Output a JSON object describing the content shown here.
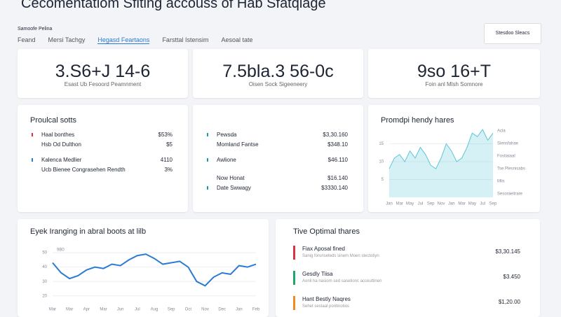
{
  "header": {
    "title": "Cecomentatiom Sfiting accouss of Hab Sfatqlage",
    "subtitle": "Samoofe Pelina",
    "button": "Stesdoo Sleacs"
  },
  "tabs": [
    "Feand",
    "Mersi Tachgy",
    "Hegasd Feartaons",
    "Farsttal Istensim",
    "Aesoal tate"
  ],
  "kpis": [
    {
      "value": "3.S6+J 14-6",
      "label": "Esast Ub Fesoord Peamnment"
    },
    {
      "value": "7.5bla.3 56-0c",
      "label": "Oisen Sock Sigeeneery"
    },
    {
      "value": "9so 16+T",
      "label": "Foin anl Mlsh Somnore"
    }
  ],
  "lists": [
    {
      "title": "Proulcal sotts",
      "items": [
        {
          "name": "Haal bonthes",
          "value": "$53%"
        },
        {
          "name": "Hsb Od Dulthon",
          "value": "$5"
        },
        {
          "name": "Kalenca Medlier",
          "value": "4110"
        },
        {
          "name": "Ucb Bienee Congrasehen Rendth",
          "value": "3%"
        }
      ]
    },
    {
      "items": [
        {
          "name": "Pewsda",
          "value": "$3,30.160"
        },
        {
          "name": "Momland Fantse",
          "value": "$348.10"
        },
        {
          "name": "Awlione",
          "value": "$46.110"
        },
        {
          "name": "Now Honat",
          "value": "$16.140"
        },
        {
          "name": "Date Swwagy",
          "value": "$3330.140"
        }
      ]
    }
  ],
  "chart_data": [
    {
      "type": "area",
      "title": "Promdpi hendy hares",
      "color": "#5cc6d6",
      "categories": [
        "Jan",
        "Feb",
        "Mar",
        "Apr",
        "May",
        "Jun",
        "Jul",
        "Aug",
        "Sep",
        "Oct",
        "Nov",
        "Dec",
        "Jan",
        "Feb",
        "Mar",
        "Apr",
        "May",
        "Jun",
        "Jul",
        "Aug",
        "Sep"
      ],
      "values": [
        8,
        11,
        12,
        10,
        13,
        11,
        14,
        12,
        9,
        8,
        11,
        15,
        13,
        10,
        11,
        14,
        18,
        17,
        19,
        16,
        18
      ],
      "ylim": [
        0,
        20
      ],
      "yticks": [
        5,
        10,
        15
      ],
      "grid": true,
      "annotations": [
        "Acla",
        "Siensfahae",
        "Fostiaiaal",
        "Tse Plesnisabs",
        "Mlis",
        "Sesoraeitrare"
      ]
    },
    {
      "type": "line",
      "title": "Eyek Iranging in abral boots at lilb",
      "color": "#2a7bd4",
      "categories": [
        "Mar",
        "",
        "Mar",
        "",
        "Apr",
        "",
        "Mar",
        "",
        "Jun",
        "",
        "Jul",
        "",
        "Aug",
        "",
        "Sep",
        "",
        "Oct",
        "",
        "Nov",
        "",
        "Dec",
        "",
        "Jan",
        "",
        "Feb"
      ],
      "values": [
        43,
        36,
        32,
        34,
        38,
        40,
        39,
        42,
        41,
        45,
        48,
        49,
        46,
        42,
        43,
        44,
        40,
        30,
        27,
        33,
        36,
        35,
        41,
        40,
        42
      ],
      "ylim": [
        15,
        52
      ],
      "yticks": [
        20,
        30,
        40,
        50
      ],
      "grid": true,
      "annotation": "9B0"
    }
  ],
  "options": {
    "title": "Tive Optimal thares",
    "items": [
      {
        "name": "Fiax Aposal fined",
        "sub": "Sanig forunseteds sinem Moen stectotiyn",
        "value": "$3,30.145",
        "color": "#d9334a"
      },
      {
        "name": "Gesdly Tiisa",
        "sub": "Aonil ha nasiom sed sasetionc acceuttinen",
        "value": "$3.450",
        "color": "#1fa86a"
      },
      {
        "name": "Hant Bestly Naqres",
        "sub": "Sehet sestaal pontinotios",
        "value": "$1,20.00",
        "color": "#f08a24"
      }
    ]
  }
}
